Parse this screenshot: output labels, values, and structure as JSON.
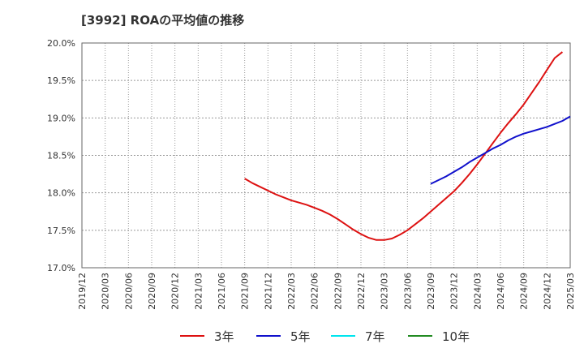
{
  "chart_data": {
    "type": "line",
    "title": "[3992]  ROAの平均値の推移",
    "xlabel": "",
    "ylabel": "",
    "ylim": [
      17.0,
      20.0
    ],
    "y_ticks": [
      "17.0%",
      "17.5%",
      "18.0%",
      "18.5%",
      "19.0%",
      "19.5%",
      "20.0%"
    ],
    "x_ticks": [
      "2019/12",
      "2020/03",
      "2020/06",
      "2020/09",
      "2020/12",
      "2021/03",
      "2021/06",
      "2021/09",
      "2021/12",
      "2022/03",
      "2022/06",
      "2022/09",
      "2022/12",
      "2023/03",
      "2023/06",
      "2023/09",
      "2023/12",
      "2024/03",
      "2024/06",
      "2024/09",
      "2024/12",
      "2025/03"
    ],
    "grid": true,
    "legend_position": "bottom",
    "series": [
      {
        "name": "3年",
        "color": "#dd1111",
        "points": [
          [
            "2021/09",
            18.19
          ],
          [
            "2021/10",
            18.13
          ],
          [
            "2021/11",
            18.08
          ],
          [
            "2021/12",
            18.03
          ],
          [
            "2022/01",
            17.98
          ],
          [
            "2022/02",
            17.94
          ],
          [
            "2022/03",
            17.9
          ],
          [
            "2022/04",
            17.87
          ],
          [
            "2022/05",
            17.84
          ],
          [
            "2022/06",
            17.8
          ],
          [
            "2022/07",
            17.76
          ],
          [
            "2022/08",
            17.71
          ],
          [
            "2022/09",
            17.65
          ],
          [
            "2022/10",
            17.58
          ],
          [
            "2022/11",
            17.51
          ],
          [
            "2022/12",
            17.45
          ],
          [
            "2023/01",
            17.4
          ],
          [
            "2023/02",
            17.37
          ],
          [
            "2023/03",
            17.37
          ],
          [
            "2023/04",
            17.39
          ],
          [
            "2023/05",
            17.44
          ],
          [
            "2023/06",
            17.5
          ],
          [
            "2023/07",
            17.58
          ],
          [
            "2023/08",
            17.66
          ],
          [
            "2023/09",
            17.75
          ],
          [
            "2023/10",
            17.84
          ],
          [
            "2023/11",
            17.93
          ],
          [
            "2023/12",
            18.02
          ],
          [
            "2024/01",
            18.13
          ],
          [
            "2024/02",
            18.25
          ],
          [
            "2024/03",
            18.38
          ],
          [
            "2024/04",
            18.52
          ],
          [
            "2024/05",
            18.66
          ],
          [
            "2024/06",
            18.8
          ],
          [
            "2024/07",
            18.93
          ],
          [
            "2024/08",
            19.05
          ],
          [
            "2024/09",
            19.18
          ],
          [
            "2024/10",
            19.33
          ],
          [
            "2024/11",
            19.48
          ],
          [
            "2024/12",
            19.64
          ],
          [
            "2025/01",
            19.8
          ],
          [
            "2025/02",
            19.88
          ]
        ]
      },
      {
        "name": "5年",
        "color": "#1111cc",
        "points": [
          [
            "2023/09",
            18.12
          ],
          [
            "2023/10",
            18.17
          ],
          [
            "2023/11",
            18.22
          ],
          [
            "2023/12",
            18.28
          ],
          [
            "2024/01",
            18.34
          ],
          [
            "2024/02",
            18.41
          ],
          [
            "2024/03",
            18.47
          ],
          [
            "2024/04",
            18.53
          ],
          [
            "2024/05",
            18.59
          ],
          [
            "2024/06",
            18.64
          ],
          [
            "2024/07",
            18.7
          ],
          [
            "2024/08",
            18.75
          ],
          [
            "2024/09",
            18.79
          ],
          [
            "2024/10",
            18.82
          ],
          [
            "2024/11",
            18.85
          ],
          [
            "2024/12",
            18.88
          ],
          [
            "2025/01",
            18.92
          ],
          [
            "2025/02",
            18.96
          ],
          [
            "2025/03",
            19.02
          ]
        ]
      },
      {
        "name": "7年",
        "color": "#00e5ee",
        "points": []
      },
      {
        "name": "10年",
        "color": "#228b22",
        "points": []
      }
    ]
  }
}
